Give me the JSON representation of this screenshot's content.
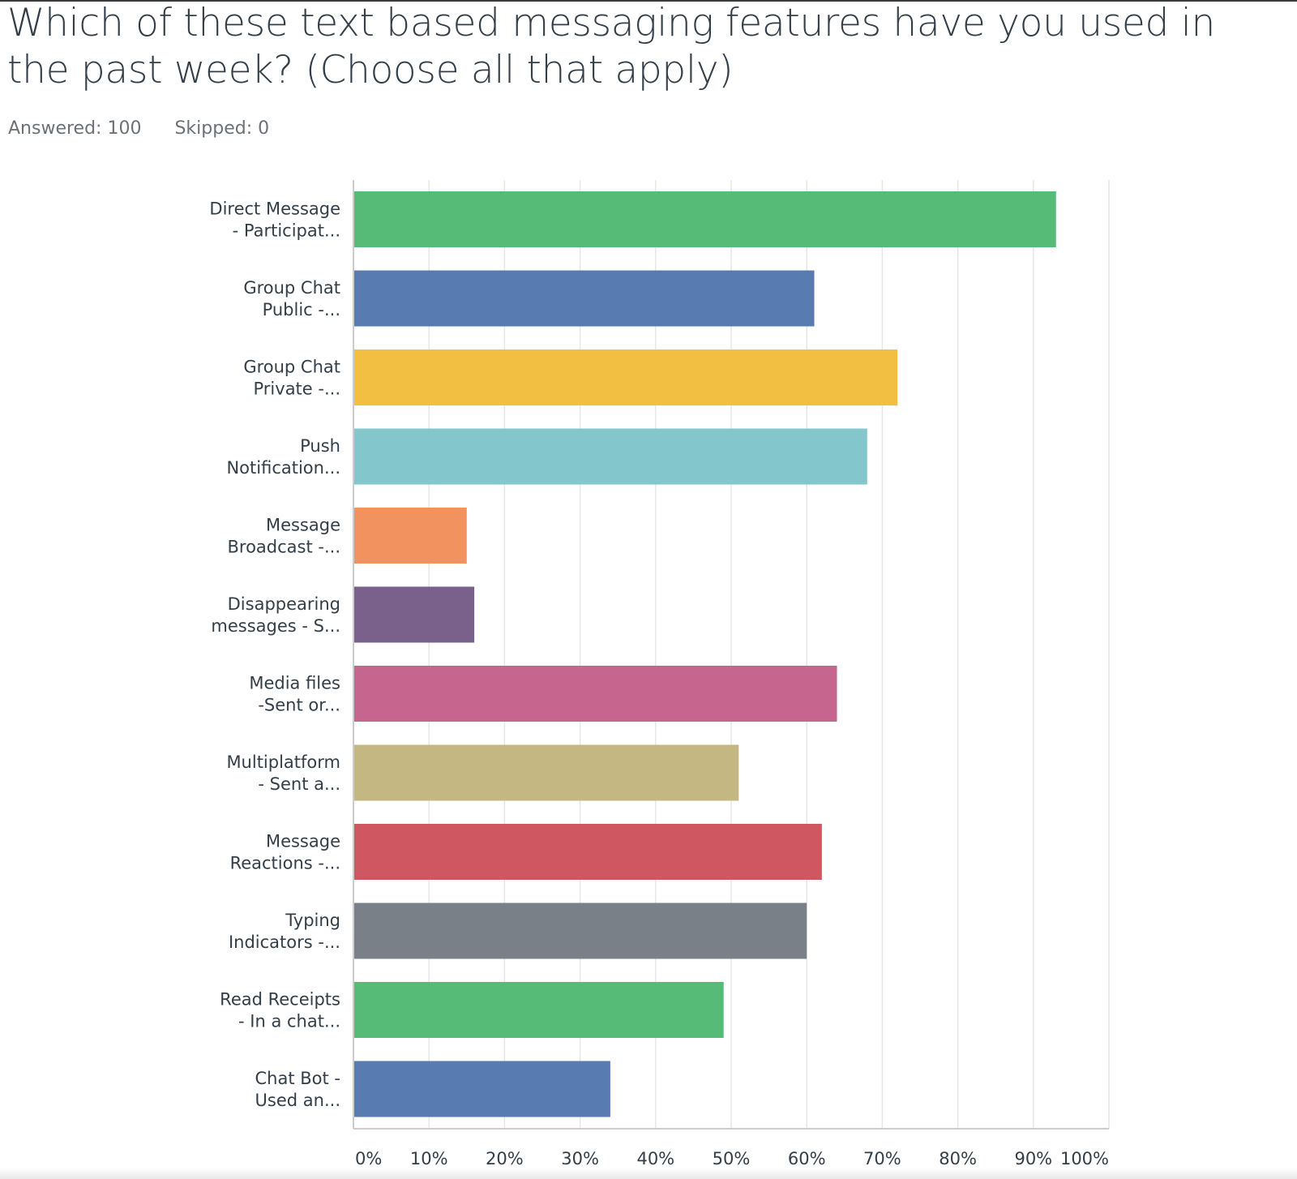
{
  "question": "Which of these text based messaging features have you used in the past week? (Choose all that apply)",
  "answered_label": "Answered: 100",
  "skipped_label": "Skipped: 0",
  "chart_data": {
    "type": "bar",
    "orientation": "horizontal",
    "categories": [
      [
        "Direct Message",
        "- Participat..."
      ],
      [
        "Group Chat",
        "Public -..."
      ],
      [
        "Group Chat",
        "Private -..."
      ],
      [
        "Push",
        "Notification..."
      ],
      [
        "Message",
        "Broadcast -..."
      ],
      [
        "Disappearing",
        "messages - S..."
      ],
      [
        "Media files",
        "-Sent or..."
      ],
      [
        "Multiplatform",
        "- Sent a..."
      ],
      [
        "Message",
        "Reactions -..."
      ],
      [
        "Typing",
        "Indicators -..."
      ],
      [
        "Read Receipts",
        "- In a chat..."
      ],
      [
        "Chat Bot -",
        "Used an..."
      ]
    ],
    "values": [
      93,
      61,
      72,
      68,
      15,
      16,
      64,
      51,
      62,
      60,
      49,
      34
    ],
    "colors": [
      "#55bb77",
      "#587bb1",
      "#f2bf42",
      "#83c7cd",
      "#f2925e",
      "#7a618b",
      "#c6668e",
      "#c5b782",
      "#ce5761",
      "#7a8087",
      "#55bb77",
      "#587bb1"
    ],
    "xlim": [
      0,
      100
    ],
    "xticks": [
      "0%",
      "10%",
      "20%",
      "30%",
      "40%",
      "50%",
      "60%",
      "70%",
      "80%",
      "90%",
      "100%"
    ],
    "grid": true
  }
}
